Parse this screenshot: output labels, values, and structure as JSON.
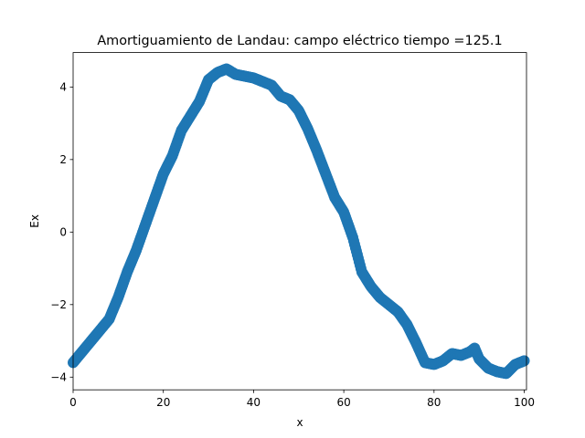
{
  "chart_data": {
    "type": "scatter",
    "title": "Amortiguamiento de Landau: campo eléctrico  tiempo =125.1",
    "xlabel": "x",
    "ylabel": "Ex",
    "xlim": [
      0,
      100.5
    ],
    "ylim": [
      -4.35,
      4.95
    ],
    "xticks": [
      0,
      20,
      40,
      60,
      80,
      100
    ],
    "yticks": [
      -4,
      -2,
      0,
      2,
      4
    ],
    "xtick_labels": [
      "0",
      "20",
      "40",
      "60",
      "80",
      "100"
    ],
    "ytick_labels": [
      "−4",
      "−2",
      "0",
      "2",
      "4"
    ],
    "grid": false,
    "color": "#1f77b4",
    "series": [
      {
        "x": [
          0,
          2,
          4,
          6,
          8,
          10,
          12,
          14,
          16,
          18,
          20,
          22,
          24,
          26,
          28,
          30,
          32,
          34,
          36,
          38,
          40,
          42,
          44,
          46,
          48,
          50,
          52,
          54,
          56,
          58,
          60,
          62,
          64,
          66,
          68,
          70,
          72,
          74,
          76,
          78,
          80,
          82,
          84,
          86,
          88,
          89,
          90,
          92,
          94,
          96,
          98,
          100
        ],
        "y": [
          -3.6,
          -3.3,
          -3.0,
          -2.7,
          -2.4,
          -1.8,
          -1.1,
          -0.5,
          0.2,
          0.9,
          1.6,
          2.1,
          2.8,
          3.2,
          3.6,
          4.2,
          4.4,
          4.5,
          4.35,
          4.3,
          4.25,
          4.15,
          4.05,
          3.75,
          3.65,
          3.35,
          2.85,
          2.25,
          1.6,
          0.95,
          0.55,
          -0.15,
          -1.1,
          -1.5,
          -1.8,
          -2.0,
          -2.2,
          -2.55,
          -3.05,
          -3.6,
          -3.65,
          -3.55,
          -3.35,
          -3.4,
          -3.3,
          -3.2,
          -3.5,
          -3.75,
          -3.85,
          -3.9,
          -3.65,
          -3.55
        ]
      }
    ]
  }
}
